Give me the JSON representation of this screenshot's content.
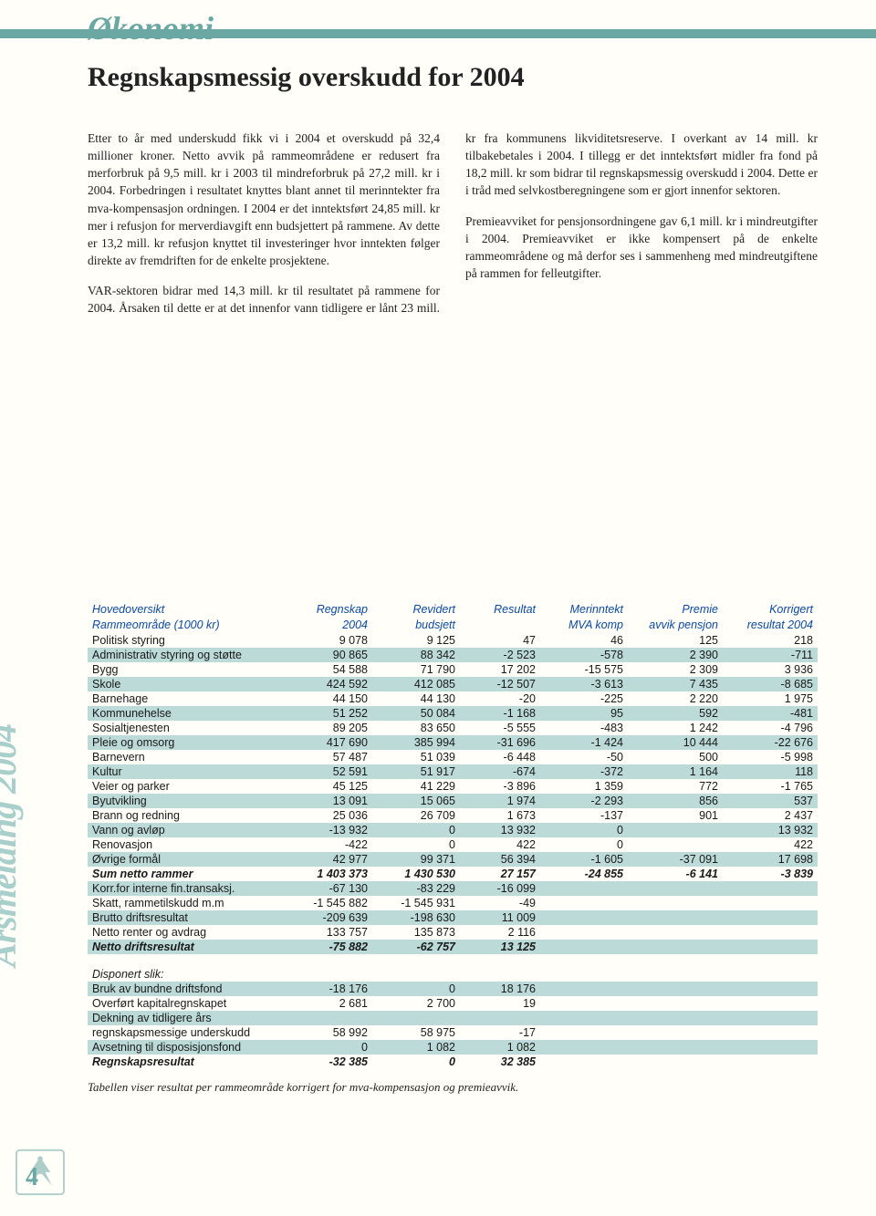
{
  "section_title": "Økonomi",
  "main_title": "Regnskapsmessig overskudd for 2004",
  "side_label": "Årsmelding 2004",
  "page_number": "4",
  "colors": {
    "teal": "#6ba8a3",
    "teal_light": "#bcdad7",
    "teal_pale": "#a8cfcb",
    "header_blue": "#0b4aa0",
    "bg": "#fffef9",
    "text": "#222222"
  },
  "paragraphs": [
    "Etter to år med underskudd fikk vi i 2004 et overskudd på 32,4 millioner kroner. Netto avvik på rammeområdene er redusert fra merforbruk på 9,5 mill. kr i 2003 til mindreforbruk på 27,2 mill. kr i 2004. Forbedringen i resultatet knyttes blant annet til merinntekter fra mva-kompensasjon ordningen. I 2004 er det inntektsført 24,85 mill. kr mer i refusjon for merverdiavgift enn budsjettert på rammene. Av dette er 13,2 mill. kr refusjon knyttet til investeringer hvor inntekten følger direkte av fremdriften for de enkelte prosjektene.",
    "VAR-sektoren bidrar med 14,3 mill. kr til resultatet på rammene for 2004. Årsaken til dette er at det innenfor vann tidligere er lånt 23 mill. kr fra kommunens likviditetsreserve. I overkant av 14 mill. kr tilbakebetales i 2004. I tillegg er det inntektsført midler fra fond på 18,2 mill. kr som bidrar til regnskapsmessig overskudd i 2004. Dette er i tråd med selvkostberegningene som er gjort innenfor sektoren.",
    "Premieavviket for pensjonsordningene gav 6,1 mill. kr i mindreutgifter i 2004. Premieavviket er ikke kompensert på de enkelte rammeområdene og må derfor ses i sammenheng med mindreutgiftene på rammen for felleutgifter."
  ],
  "table": {
    "header1": [
      "Hovedoversikt",
      "Regnskap",
      "Revidert",
      "Resultat",
      "Merinntekt",
      "Premie",
      "Korrigert"
    ],
    "header2": [
      "Rammeområde (1000 kr)",
      "2004",
      "budsjett",
      "",
      "MVA komp",
      "avvik pensjon",
      "resultat 2004"
    ],
    "rows": [
      [
        "Politisk styring",
        "9 078",
        "9 125",
        "47",
        "46",
        "125",
        "218"
      ],
      [
        "Administrativ styring og støtte",
        "90 865",
        "88 342",
        "-2 523",
        "-578",
        "2 390",
        "-711"
      ],
      [
        "Bygg",
        "54 588",
        "71 790",
        "17 202",
        "-15 575",
        "2 309",
        "3 936"
      ],
      [
        "Skole",
        "424 592",
        "412 085",
        "-12 507",
        "-3 613",
        "7 435",
        "-8 685"
      ],
      [
        "Barnehage",
        "44 150",
        "44 130",
        "-20",
        "-225",
        "2 220",
        "1 975"
      ],
      [
        "Kommunehelse",
        "51 252",
        "50 084",
        "-1 168",
        "95",
        "592",
        "-481"
      ],
      [
        "Sosialtjenesten",
        "89 205",
        "83 650",
        "-5 555",
        "-483",
        "1 242",
        "-4 796"
      ],
      [
        "Pleie og omsorg",
        "417 690",
        "385 994",
        "-31 696",
        "-1 424",
        "10 444",
        "-22 676"
      ],
      [
        "Barnevern",
        "57 487",
        "51 039",
        "-6 448",
        "-50",
        "500",
        "-5 998"
      ],
      [
        "Kultur",
        "52 591",
        "51 917",
        "-674",
        "-372",
        "1 164",
        "118"
      ],
      [
        "Veier og parker",
        "45 125",
        "41 229",
        "-3 896",
        "1 359",
        "772",
        "-1 765"
      ],
      [
        "Byutvikling",
        "13 091",
        "15 065",
        "1 974",
        "-2 293",
        "856",
        "537"
      ],
      [
        "Brann og redning",
        "25 036",
        "26 709",
        "1 673",
        "-137",
        "901",
        "2 437"
      ],
      [
        "Vann og avløp",
        "-13 932",
        "0",
        "13 932",
        "0",
        "",
        "13 932"
      ],
      [
        "Renovasjon",
        "-422",
        "0",
        "422",
        "0",
        "",
        "422"
      ],
      [
        "Øvrige formål",
        "42 977",
        "99 371",
        "56 394",
        "-1 605",
        "-37 091",
        "17 698"
      ]
    ],
    "sum_row": [
      "Sum netto rammer",
      "1 403 373",
      "1 430 530",
      "27 157",
      "-24 855",
      "-6 141",
      "-3 839"
    ],
    "rows2": [
      [
        "Korr.for interne fin.transaksj.",
        "-67 130",
        "-83 229",
        "-16 099",
        "",
        "",
        ""
      ],
      [
        "Skatt, rammetilskudd m.m",
        "-1 545 882",
        "-1 545 931",
        "-49",
        "",
        "",
        ""
      ],
      [
        "Brutto driftsresultat",
        "-209 639",
        "-198 630",
        "11 009",
        "",
        "",
        ""
      ],
      [
        "Netto renter og avdrag",
        "133 757",
        "135 873",
        "2 116",
        "",
        "",
        ""
      ]
    ],
    "netto_row": [
      "Netto driftsresultat",
      "-75 882",
      "-62 757",
      "13 125",
      "",
      "",
      ""
    ],
    "dispo_header": "Disponert slik:",
    "rows3": [
      [
        "Bruk av bundne driftsfond",
        "-18 176",
        "0",
        "18 176",
        "",
        "",
        ""
      ],
      [
        "Overført kapitalregnskapet",
        "2 681",
        "2 700",
        "19",
        "",
        "",
        ""
      ],
      [
        "Dekning av tidligere års",
        "",
        "",
        "",
        "",
        "",
        ""
      ],
      [
        "regnskapsmessige underskudd",
        "58 992",
        "58 975",
        "-17",
        "",
        "",
        ""
      ],
      [
        "Avsetning til disposisjonsfond",
        "0",
        "1 082",
        "1 082",
        "",
        "",
        ""
      ]
    ],
    "final_row": [
      "Regnskapsresultat",
      "-32 385",
      "0",
      "32 385",
      "",
      "",
      ""
    ],
    "caption": "Tabellen viser resultat per rammeområde korrigert for mva-kompensasjon og premieavvik.",
    "col_widths": [
      "28%",
      "11%",
      "12%",
      "11%",
      "12%",
      "13%",
      "13%"
    ]
  }
}
